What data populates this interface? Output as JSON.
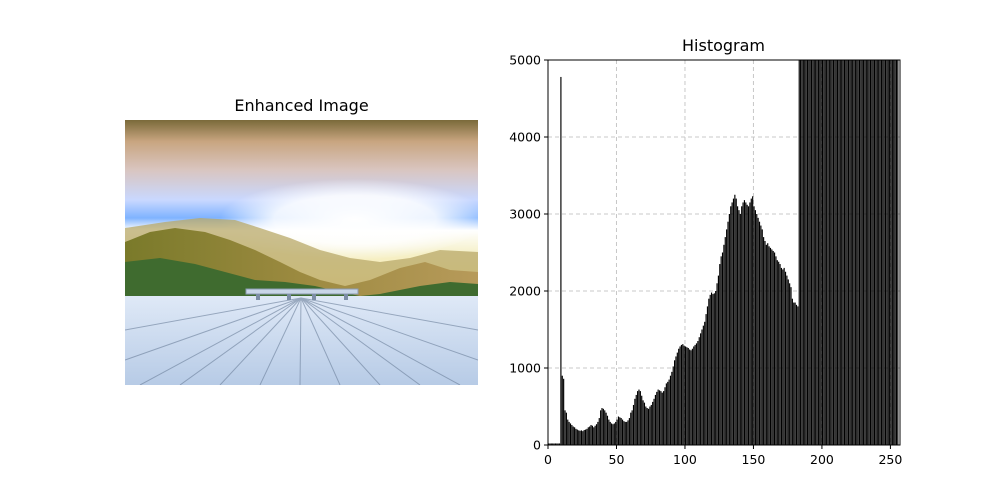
{
  "left_panel": {
    "title": "Enhanced Image"
  },
  "chart_data": {
    "type": "histogram",
    "title": "Histogram",
    "xlabel": "",
    "ylabel": "",
    "xlim": [
      0,
      255
    ],
    "ylim": [
      0,
      5000
    ],
    "xticks": [
      0,
      50,
      100,
      150,
      200,
      250
    ],
    "yticks": [
      0,
      1000,
      2000,
      3000,
      4000,
      5000
    ],
    "grid": true,
    "grid_style": "dashed",
    "bar_color": "#000000",
    "x": [
      0,
      1,
      2,
      3,
      4,
      5,
      6,
      7,
      8,
      9,
      10,
      11,
      12,
      13,
      14,
      15,
      16,
      17,
      18,
      19,
      20,
      21,
      22,
      23,
      24,
      25,
      26,
      27,
      28,
      29,
      30,
      31,
      32,
      33,
      34,
      35,
      36,
      37,
      38,
      39,
      40,
      41,
      42,
      43,
      44,
      45,
      46,
      47,
      48,
      49,
      50,
      51,
      52,
      53,
      54,
      55,
      56,
      57,
      58,
      59,
      60,
      61,
      62,
      63,
      64,
      65,
      66,
      67,
      68,
      69,
      70,
      71,
      72,
      73,
      74,
      75,
      76,
      77,
      78,
      79,
      80,
      81,
      82,
      83,
      84,
      85,
      86,
      87,
      88,
      89,
      90,
      91,
      92,
      93,
      94,
      95,
      96,
      97,
      98,
      99,
      100,
      101,
      102,
      103,
      104,
      105,
      106,
      107,
      108,
      109,
      110,
      111,
      112,
      113,
      114,
      115,
      116,
      117,
      118,
      119,
      120,
      121,
      122,
      123,
      124,
      125,
      126,
      127,
      128,
      129,
      130,
      131,
      132,
      133,
      134,
      135,
      136,
      137,
      138,
      139,
      140,
      141,
      142,
      143,
      144,
      145,
      146,
      147,
      148,
      149,
      150,
      151,
      152,
      153,
      154,
      155,
      156,
      157,
      158,
      159,
      160,
      161,
      162,
      163,
      164,
      165,
      166,
      167,
      168,
      169,
      170,
      171,
      172,
      173,
      174,
      175,
      176,
      177,
      178,
      179,
      180,
      181,
      182,
      183,
      184,
      185,
      186,
      187,
      188,
      189,
      190,
      191,
      192,
      193,
      194,
      195,
      196,
      197,
      198,
      199,
      200,
      201,
      202,
      203,
      204,
      205,
      206,
      207,
      208,
      209,
      210,
      211,
      212,
      213,
      214,
      215,
      216,
      217,
      218,
      219,
      220,
      221,
      222,
      223,
      224,
      225,
      226,
      227,
      228,
      229,
      230,
      231,
      232,
      233,
      234,
      235,
      236,
      237,
      238,
      239,
      240,
      241,
      242,
      243,
      244,
      245,
      246,
      247,
      248,
      249,
      250,
      251,
      252,
      253,
      254,
      255
    ],
    "values": [
      20,
      20,
      20,
      20,
      20,
      20,
      20,
      20,
      20,
      4780,
      900,
      860,
      450,
      420,
      330,
      300,
      280,
      260,
      240,
      230,
      210,
      200,
      190,
      185,
      190,
      180,
      195,
      200,
      210,
      230,
      240,
      260,
      250,
      230,
      250,
      270,
      300,
      350,
      450,
      480,
      470,
      450,
      420,
      380,
      330,
      300,
      280,
      270,
      280,
      300,
      330,
      370,
      360,
      350,
      330,
      310,
      300,
      300,
      320,
      350,
      420,
      450,
      520,
      600,
      650,
      700,
      720,
      700,
      640,
      580,
      550,
      500,
      480,
      470,
      500,
      520,
      560,
      600,
      650,
      690,
      720,
      710,
      700,
      680,
      700,
      750,
      800,
      820,
      850,
      900,
      950,
      1020,
      1100,
      1150,
      1200,
      1250,
      1280,
      1300,
      1310,
      1290,
      1280,
      1270,
      1260,
      1240,
      1230,
      1250,
      1280,
      1300,
      1320,
      1350,
      1400,
      1450,
      1500,
      1550,
      1600,
      1700,
      1800,
      1900,
      1950,
      1980,
      1960,
      1970,
      2000,
      2100,
      2200,
      2350,
      2450,
      2500,
      2600,
      2700,
      2800,
      2900,
      3000,
      3100,
      3150,
      3200,
      3250,
      3200,
      3100,
      3050,
      3000,
      3100,
      3150,
      3180,
      3150,
      3120,
      3100,
      3150,
      3200,
      3230,
      3100,
      3050,
      3000,
      2950,
      2900,
      2850,
      2800,
      2700,
      2650,
      2600,
      2620,
      2580,
      2560,
      2540,
      2520,
      2500,
      2450,
      2400,
      2380,
      2350,
      2300,
      2280,
      2300,
      2250,
      2200,
      2150,
      2100,
      2050,
      1900,
      1850,
      1850,
      1820,
      1800,
      5000,
      5000,
      5000,
      5000,
      5000,
      5000,
      5000,
      5000,
      5000,
      5000,
      5000,
      5000,
      5000,
      5000,
      5000,
      5000,
      5000,
      5000,
      5000,
      5000,
      5000,
      5000,
      5000,
      5000,
      5000,
      5000,
      5000,
      5000,
      5000,
      5000,
      5000,
      5000,
      5000,
      5000,
      5000,
      5000,
      5000,
      5000,
      5000,
      5000,
      5000,
      5000,
      5000,
      5000,
      5000,
      5000,
      5000,
      5000,
      5000,
      5000,
      5000,
      5000,
      5000,
      5000,
      5000,
      5000,
      5000,
      5000,
      5000,
      5000,
      5000,
      5000,
      5000,
      5000,
      5000,
      5000,
      5000,
      5000,
      5000,
      5000,
      5000,
      5000,
      5000
    ]
  }
}
